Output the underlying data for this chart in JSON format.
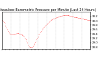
{
  "title": "Milwaukee Barometric Pressure per Minute (Last 24 Hours)",
  "title_fontsize": 3.5,
  "background_color": "#ffffff",
  "plot_background": "#ffffff",
  "line_color": "#ff0000",
  "grid_color": "#bbbbbb",
  "y_values": [
    30.02,
    30.0,
    29.97,
    29.93,
    29.88,
    29.82,
    29.76,
    29.7,
    29.64,
    29.58,
    29.52,
    29.47,
    29.43,
    29.4,
    29.38,
    29.37,
    29.36,
    29.36,
    29.36,
    29.37,
    29.38,
    29.39,
    29.4,
    29.41,
    29.42,
    29.42,
    29.42,
    29.42,
    29.42,
    29.41,
    29.4,
    29.39,
    29.38,
    29.37,
    29.35,
    29.33,
    29.3,
    29.27,
    29.23,
    29.19,
    29.14,
    29.09,
    29.03,
    28.97,
    28.91,
    28.85,
    28.82,
    28.8,
    28.79,
    28.79,
    28.8,
    28.82,
    28.85,
    28.89,
    28.94,
    28.99,
    29.04,
    29.1,
    29.15,
    29.21,
    29.26,
    29.31,
    29.36,
    29.41,
    29.46,
    29.5,
    29.54,
    29.58,
    29.62,
    29.65,
    29.68,
    29.71,
    29.74,
    29.77,
    29.8,
    29.83,
    29.86,
    29.89,
    29.92,
    29.95,
    29.97,
    30.0,
    30.02,
    30.04,
    30.06,
    30.08,
    30.09,
    30.1,
    30.11,
    30.12,
    30.13,
    30.14,
    30.15,
    30.16,
    30.17,
    30.18,
    30.19,
    30.2,
    30.21,
    30.22,
    30.23,
    30.23,
    30.24,
    30.24,
    30.24,
    30.25,
    30.25,
    30.25,
    30.25,
    30.25,
    30.25,
    30.25,
    30.24,
    30.24,
    30.23,
    30.22,
    30.22,
    30.21,
    30.2,
    30.19,
    30.19,
    30.18,
    30.17,
    30.17,
    30.16,
    30.16,
    30.15,
    30.15,
    30.14,
    30.14,
    30.13,
    30.13,
    30.12,
    30.12,
    30.11,
    30.1,
    30.1,
    30.09,
    30.08,
    30.08,
    30.07,
    30.07,
    30.06,
    30.06,
    30.05,
    30.05,
    30.04,
    30.04,
    30.03,
    30.03
  ],
  "ylim_min": 28.7,
  "ylim_max": 30.4,
  "ytick_values": [
    28.8,
    29.0,
    29.2,
    29.4,
    29.6,
    29.8,
    30.0,
    30.2
  ],
  "ytick_fontsize": 2.8,
  "xtick_fontsize": 2.3,
  "num_vgrid_lines": 9,
  "marker_size": 0.7,
  "figwidth": 1.6,
  "figheight": 0.87,
  "dpi": 100
}
